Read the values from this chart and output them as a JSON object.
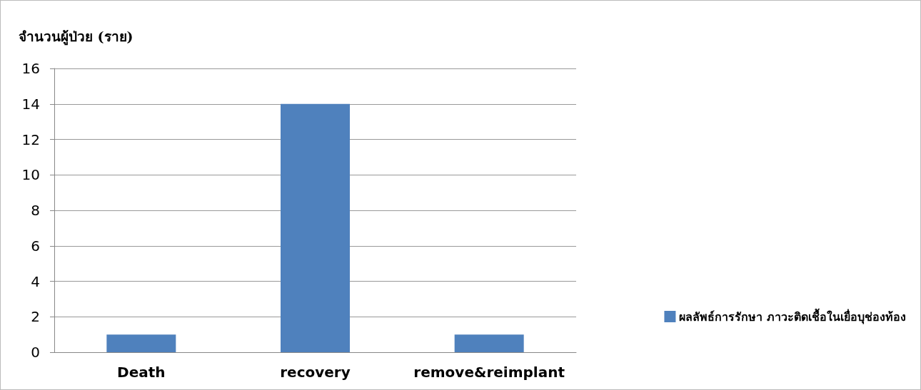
{
  "chart_data": {
    "type": "bar",
    "ylabel": "จำนวนผู้ป่วย (ราย)",
    "categories": [
      "Death",
      "recovery",
      "remove&reimplant"
    ],
    "series": [
      {
        "name": "ผลลัพธ์การรักษา ภาวะติดเชื้อในเยื่อบุช่องท้อง",
        "color": "#4f81bd",
        "values": [
          1,
          14,
          1
        ]
      }
    ],
    "ylim": [
      0,
      16
    ],
    "yticks": [
      0,
      2,
      4,
      6,
      8,
      10,
      12,
      14,
      16
    ],
    "grid": "y",
    "legend": "right"
  }
}
